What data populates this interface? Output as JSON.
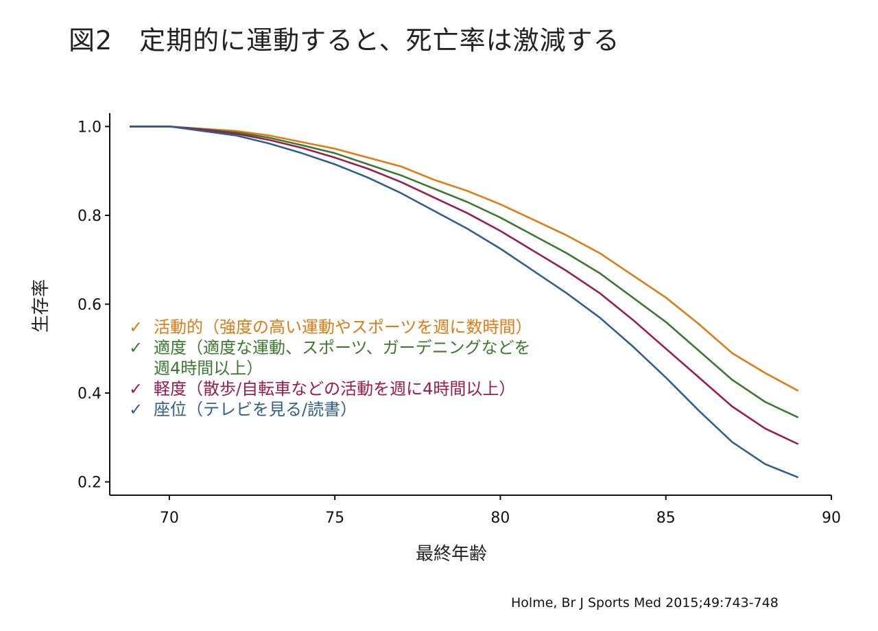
{
  "title": "図2　定期的に運動すると、死亡率は激減する",
  "source": "Holme, Br J Sports Med 2015;49:743-748",
  "chart_data": {
    "type": "line",
    "xlabel": "最終年齢",
    "ylabel": "生存率",
    "xlim": [
      68.2,
      90
    ],
    "ylim": [
      0.17,
      1.03
    ],
    "xticks": [
      "70",
      "75",
      "80",
      "85",
      "90"
    ],
    "yticks": [
      "0.2",
      "0.4",
      "0.6",
      "0.8",
      "1.0"
    ],
    "grid": false,
    "legend_position": "lower-left",
    "x": [
      68.8,
      70,
      71,
      72,
      73,
      74,
      75,
      76,
      77,
      78,
      79,
      80,
      81,
      82,
      83,
      84,
      85,
      86,
      87,
      88,
      89
    ],
    "series": [
      {
        "name": "活動的（強度の高い運動やスポーツを週に数時間）",
        "color": "#e07b14",
        "values": [
          1.0,
          1.0,
          0.995,
          0.99,
          0.98,
          0.965,
          0.95,
          0.93,
          0.91,
          0.88,
          0.855,
          0.825,
          0.79,
          0.755,
          0.715,
          0.665,
          0.615,
          0.555,
          0.49,
          0.445,
          0.405
        ]
      },
      {
        "name": "適度（適度な運動、スポーツ、ガーデニングなどを週4時間以上）",
        "color": "#3b7a2e",
        "values": [
          1.0,
          1.0,
          0.994,
          0.987,
          0.975,
          0.958,
          0.94,
          0.915,
          0.89,
          0.86,
          0.83,
          0.795,
          0.755,
          0.715,
          0.67,
          0.615,
          0.56,
          0.495,
          0.43,
          0.38,
          0.345
        ]
      },
      {
        "name": "軽度（散歩/自転車などの活動を週に4時間以上）",
        "color": "#9b1b4b",
        "values": [
          1.0,
          1.0,
          0.993,
          0.984,
          0.97,
          0.952,
          0.93,
          0.905,
          0.875,
          0.84,
          0.805,
          0.765,
          0.72,
          0.675,
          0.625,
          0.565,
          0.5,
          0.435,
          0.37,
          0.32,
          0.285
        ]
      },
      {
        "name": "座位（テレビを見る/読書）",
        "color": "#2f5f8a",
        "values": [
          1.0,
          1.0,
          0.99,
          0.98,
          0.962,
          0.94,
          0.915,
          0.885,
          0.85,
          0.81,
          0.77,
          0.725,
          0.675,
          0.625,
          0.57,
          0.505,
          0.435,
          0.36,
          0.29,
          0.24,
          0.21
        ]
      }
    ]
  }
}
